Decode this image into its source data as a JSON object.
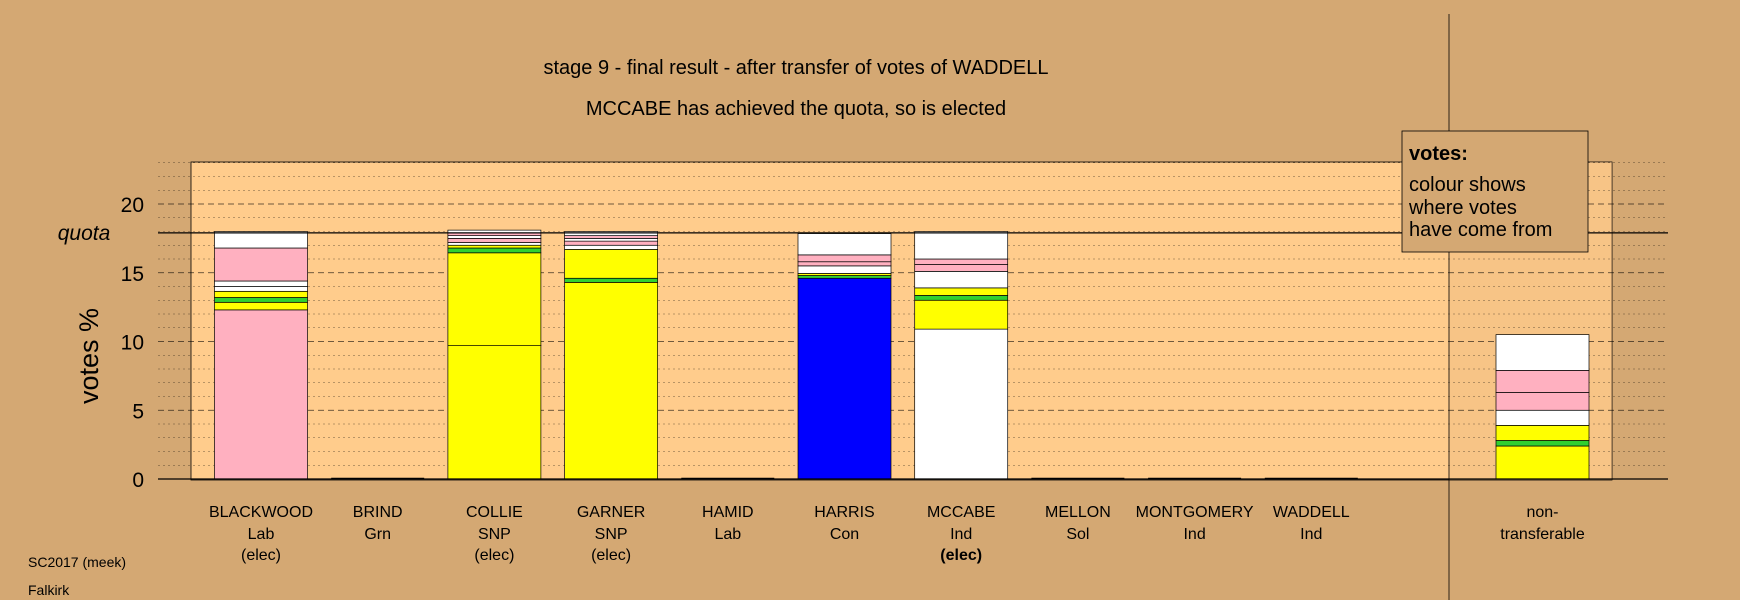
{
  "chart_data": {
    "type": "bar",
    "stacked": true,
    "title": "stage 9 - final result - after transfer of votes of WADDELL",
    "subtitle": "MCCABE has achieved the quota, so is elected",
    "ylabel": "votes %",
    "quota_label": "quota",
    "quota": 17.9,
    "ylim": [
      0,
      23
    ],
    "yticks": [
      0,
      5,
      10,
      15,
      20
    ],
    "colors": {
      "background": "#d4a873",
      "plot_area": "#ffcc8c",
      "lab": "#ffb0c0",
      "snp": "#ffff00",
      "con": "#0000ff",
      "grn": "#30d030",
      "ind": "#ffffff",
      "sol": "#ff4040"
    },
    "categories": [
      {
        "name": "BLACKWOOD",
        "party": "Lab",
        "status": "(elec)",
        "bold": false,
        "segments": [
          {
            "value": 12.3,
            "color": "#ffb0c0"
          },
          {
            "value": 0.55,
            "color": "#ffff00"
          },
          {
            "value": 0.35,
            "color": "#30d030"
          },
          {
            "value": 0.45,
            "color": "#ffff00"
          },
          {
            "value": 0.35,
            "color": "#ffffff"
          },
          {
            "value": 0.4,
            "color": "#ffffff"
          },
          {
            "value": 2.4,
            "color": "#ffb0c0"
          },
          {
            "value": 1.2,
            "color": "#ffffff"
          }
        ]
      },
      {
        "name": "BRIND",
        "party": "Grn",
        "status": "",
        "bold": false,
        "segments": []
      },
      {
        "name": "COLLIE",
        "party": "SNP",
        "status": "(elec)",
        "bold": false,
        "segments": [
          {
            "value": 9.7,
            "color": "#ffff00"
          },
          {
            "value": 6.75,
            "color": "#ffff00"
          },
          {
            "value": 0.35,
            "color": "#30d030"
          },
          {
            "value": 0.2,
            "color": "#ffff00"
          },
          {
            "value": 0.2,
            "color": "#ffffff"
          },
          {
            "value": 0.3,
            "color": "#ffb0c0"
          },
          {
            "value": 0.2,
            "color": "#ffffff"
          },
          {
            "value": 0.2,
            "color": "#ffb0c0"
          },
          {
            "value": 0.2,
            "color": "#ffffff"
          }
        ]
      },
      {
        "name": "GARNER",
        "party": "SNP",
        "status": "(elec)",
        "bold": false,
        "segments": [
          {
            "value": 14.3,
            "color": "#ffff00"
          },
          {
            "value": 0.3,
            "color": "#30d030"
          },
          {
            "value": 2.1,
            "color": "#ffff00"
          },
          {
            "value": 0.3,
            "color": "#ffffff"
          },
          {
            "value": 0.3,
            "color": "#ffb0c0"
          },
          {
            "value": 0.2,
            "color": "#ffffff"
          },
          {
            "value": 0.2,
            "color": "#ffb0c0"
          },
          {
            "value": 0.3,
            "color": "#ffffff"
          }
        ]
      },
      {
        "name": "HAMID",
        "party": "Lab",
        "status": "",
        "bold": false,
        "segments": []
      },
      {
        "name": "HARRIS",
        "party": "Con",
        "status": "",
        "bold": false,
        "segments": [
          {
            "value": 14.6,
            "color": "#0000ff"
          },
          {
            "value": 0.2,
            "color": "#30d030"
          },
          {
            "value": 0.15,
            "color": "#ffff00"
          },
          {
            "value": 0.55,
            "color": "#ffffff"
          },
          {
            "value": 0.3,
            "color": "#ffb0c0"
          },
          {
            "value": 0.5,
            "color": "#ffb0c0"
          },
          {
            "value": 1.55,
            "color": "#ffffff"
          }
        ]
      },
      {
        "name": "MCCABE",
        "party": "Ind",
        "status": "(elec)",
        "bold": true,
        "segments": [
          {
            "value": 10.9,
            "color": "#ffffff"
          },
          {
            "value": 2.1,
            "color": "#ffff00"
          },
          {
            "value": 0.35,
            "color": "#30d030"
          },
          {
            "value": 0.55,
            "color": "#ffff00"
          },
          {
            "value": 1.2,
            "color": "#ffffff"
          },
          {
            "value": 0.5,
            "color": "#ffb0c0"
          },
          {
            "value": 0.4,
            "color": "#ffb0c0"
          },
          {
            "value": 2.0,
            "color": "#ffffff"
          }
        ]
      },
      {
        "name": "MELLON",
        "party": "Sol",
        "status": "",
        "bold": false,
        "segments": []
      },
      {
        "name": "MONTGOMERY",
        "party": "Ind",
        "status": "",
        "bold": false,
        "segments": []
      },
      {
        "name": "WADDELL",
        "party": "Ind",
        "status": "",
        "bold": false,
        "segments": []
      }
    ],
    "nontransferable": {
      "line1": "non-",
      "line2": "transferable",
      "segments": [
        {
          "value": 2.4,
          "color": "#ffff00"
        },
        {
          "value": 0.4,
          "color": "#30d030"
        },
        {
          "value": 1.1,
          "color": "#ffff00"
        },
        {
          "value": 1.1,
          "color": "#ffffff"
        },
        {
          "value": 1.3,
          "color": "#ffb0c0"
        },
        {
          "value": 1.6,
          "color": "#ffb0c0"
        },
        {
          "value": 2.6,
          "color": "#ffffff"
        }
      ]
    },
    "legend": {
      "title": "votes:",
      "lines": [
        "colour shows",
        "where votes",
        "have come from"
      ],
      "placement": "top-right"
    }
  },
  "footer": {
    "line1": "SC2017 (meek)",
    "line2": "Falkirk"
  }
}
